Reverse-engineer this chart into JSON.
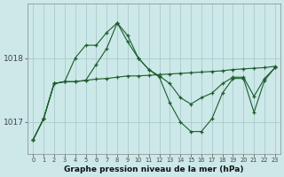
{
  "title": "Graphe pression niveau de la mer (hPa)",
  "bg_color": "#cce8e8",
  "grid_color": "#aacccc",
  "line_color": "#1a5c2a",
  "x_labels": [
    "0",
    "1",
    "2",
    "3",
    "4",
    "5",
    "6",
    "7",
    "8",
    "9",
    "10",
    "11",
    "12",
    "13",
    "14",
    "15",
    "16",
    "17",
    "18",
    "19",
    "20",
    "21",
    "22",
    "23"
  ],
  "y_ticks": [
    1017,
    1018
  ],
  "ylim": [
    1016.5,
    1018.85
  ],
  "xlim": [
    -0.5,
    23.5
  ],
  "series1": [
    1016.72,
    1017.05,
    1017.6,
    1017.63,
    1017.63,
    1017.65,
    1017.67,
    1017.68,
    1017.7,
    1017.72,
    1017.72,
    1017.73,
    1017.74,
    1017.75,
    1017.76,
    1017.77,
    1017.78,
    1017.79,
    1017.8,
    1017.82,
    1017.83,
    1017.84,
    1017.85,
    1017.87
  ],
  "series2": [
    1016.72,
    1017.05,
    1017.6,
    1017.63,
    1017.63,
    1017.65,
    1017.9,
    1018.15,
    1018.55,
    1018.25,
    1018.0,
    1017.82,
    1017.72,
    1017.6,
    1017.38,
    1017.28,
    1017.38,
    1017.45,
    1017.6,
    1017.7,
    1017.7,
    1017.4,
    1017.68,
    1017.85
  ],
  "series3": [
    1016.72,
    1017.05,
    1017.6,
    1017.63,
    1018.0,
    1018.2,
    1018.2,
    1018.4,
    1018.55,
    1018.35,
    1018.0,
    1017.82,
    1017.7,
    1017.3,
    1017.0,
    1016.85,
    1016.85,
    1017.05,
    1017.45,
    1017.68,
    1017.68,
    1017.15,
    1017.65,
    1017.85
  ]
}
